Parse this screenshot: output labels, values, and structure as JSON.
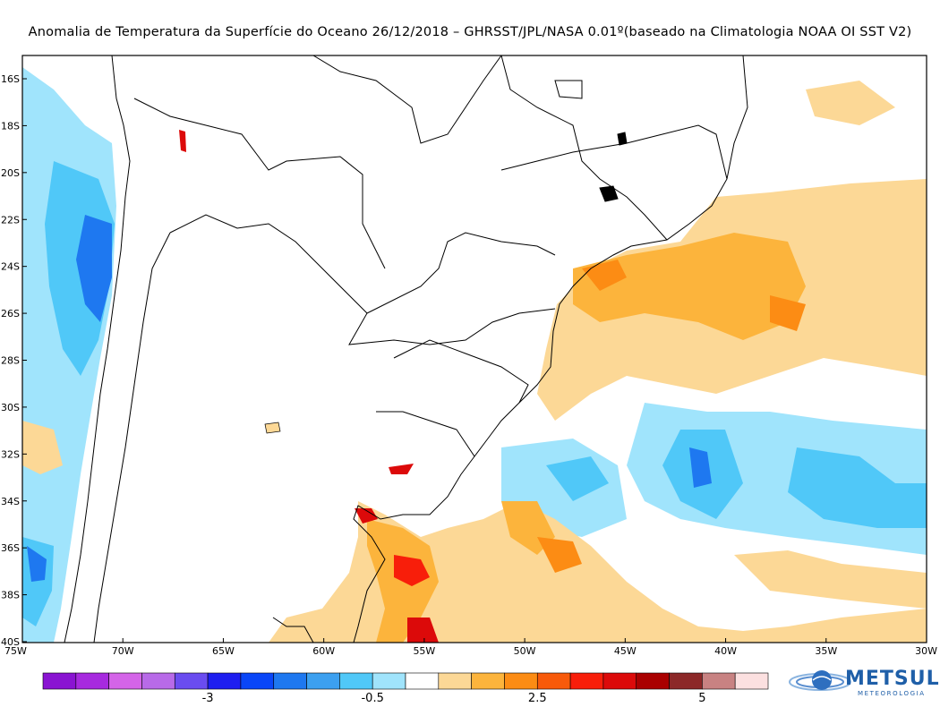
{
  "title": "Anomalia de Temperatura da Superfície do Oceano 26/12/2018 – GHRSST/JPL/NASA 0.01º(baseado na Climatologia NOAA OI SST V2)",
  "map": {
    "lat_labels": [
      "16S",
      "18S",
      "20S",
      "22S",
      "24S",
      "26S",
      "28S",
      "30S",
      "32S",
      "34S",
      "36S",
      "38S",
      "40S"
    ],
    "lon_labels": [
      "75W",
      "70W",
      "65W",
      "60W",
      "55W",
      "50W",
      "45W",
      "40W",
      "35W",
      "30W"
    ]
  },
  "colorbar": {
    "colors": [
      "#8a14d2",
      "#a72adf",
      "#d464e8",
      "#b86ae8",
      "#6a4cf0",
      "#1e1ef0",
      "#0a46f8",
      "#1e78f0",
      "#3ca0f0",
      "#50c8f8",
      "#a0e4fc",
      "#ffffff",
      "#fcd896",
      "#fcb43c",
      "#fc8c14",
      "#f85a0a",
      "#f81e0a",
      "#dc0a0a",
      "#aa0000",
      "#8c2828",
      "#c88282",
      "#fce0e0"
    ],
    "tick_labels": [
      "-3",
      "-0.5",
      "2.5",
      "5"
    ]
  },
  "logo": {
    "name": "METSUL",
    "subtitle": "METEOROLOGIA",
    "icon": "globe-swirl-icon",
    "color": "#1f5fa8"
  }
}
